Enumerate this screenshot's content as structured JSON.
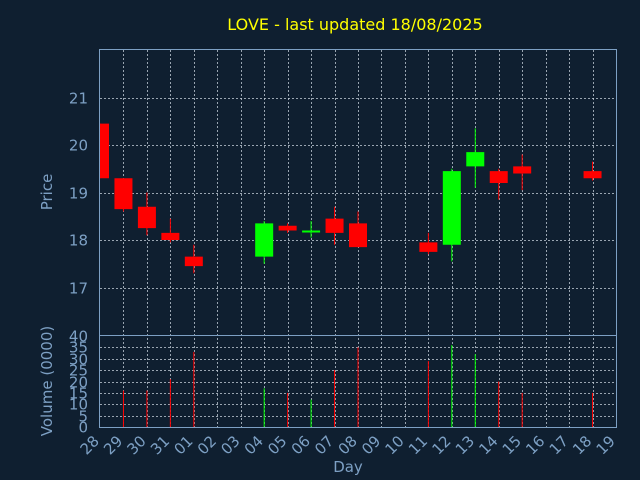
{
  "chart_data": {
    "type": "candlestick",
    "title": "LOVE - last updated 18/08/2025",
    "xlabel": "Day",
    "price_panel": {
      "ylabel": "Price",
      "ylim": [
        16,
        22
      ],
      "yticks": [
        17,
        18,
        19,
        20,
        21
      ],
      "grid": true
    },
    "volume_panel": {
      "ylabel": "Volume (0000)",
      "ylim": [
        0,
        40
      ],
      "yticks": [
        0,
        5,
        10,
        15,
        20,
        25,
        30,
        35,
        40
      ],
      "grid": true
    },
    "x_tick_labels": [
      "28",
      "29",
      "30",
      "31",
      "01",
      "02",
      "03",
      "04",
      "05",
      "06",
      "07",
      "08",
      "09",
      "10",
      "11",
      "12",
      "13",
      "14",
      "15",
      "16",
      "17",
      "18",
      "19"
    ],
    "up_color": "#00ff00",
    "down_color": "#ff0000",
    "candles": [
      {
        "day": "28",
        "open": 20.45,
        "high": 20.45,
        "low": 19.3,
        "close": 19.3,
        "volume": 0
      },
      {
        "day": "29",
        "open": 19.3,
        "high": 19.3,
        "low": 18.6,
        "close": 18.65,
        "volume": 16
      },
      {
        "day": "30",
        "open": 18.7,
        "high": 19.0,
        "low": 18.1,
        "close": 18.25,
        "volume": 16
      },
      {
        "day": "31",
        "open": 18.15,
        "high": 18.45,
        "low": 17.95,
        "close": 18.0,
        "volume": 21
      },
      {
        "day": "01",
        "open": 17.65,
        "high": 17.9,
        "low": 17.3,
        "close": 17.45,
        "volume": 33
      },
      {
        "day": "04",
        "open": 17.65,
        "high": 18.4,
        "low": 17.5,
        "close": 18.35,
        "volume": 17
      },
      {
        "day": "05",
        "open": 18.3,
        "high": 18.35,
        "low": 18.15,
        "close": 18.2,
        "volume": 15
      },
      {
        "day": "06",
        "open": 18.18,
        "high": 18.4,
        "low": 18.05,
        "close": 18.2,
        "volume": 12
      },
      {
        "day": "07",
        "open": 18.45,
        "high": 18.7,
        "low": 17.9,
        "close": 18.15,
        "volume": 25
      },
      {
        "day": "08",
        "open": 18.35,
        "high": 18.6,
        "low": 17.85,
        "close": 17.85,
        "volume": 35
      },
      {
        "day": "11",
        "open": 17.95,
        "high": 18.15,
        "low": 17.7,
        "close": 17.75,
        "volume": 29
      },
      {
        "day": "12",
        "open": 17.9,
        "high": 19.5,
        "low": 17.55,
        "close": 19.45,
        "volume": 36
      },
      {
        "day": "13",
        "open": 19.55,
        "high": 20.35,
        "low": 19.1,
        "close": 19.85,
        "volume": 32
      },
      {
        "day": "14",
        "open": 19.45,
        "high": 19.5,
        "low": 18.85,
        "close": 19.2,
        "volume": 20
      },
      {
        "day": "15",
        "open": 19.55,
        "high": 19.8,
        "low": 19.05,
        "close": 19.4,
        "volume": 15
      },
      {
        "day": "18",
        "open": 19.45,
        "high": 19.65,
        "low": 19.25,
        "close": 19.3,
        "volume": 15
      }
    ]
  }
}
